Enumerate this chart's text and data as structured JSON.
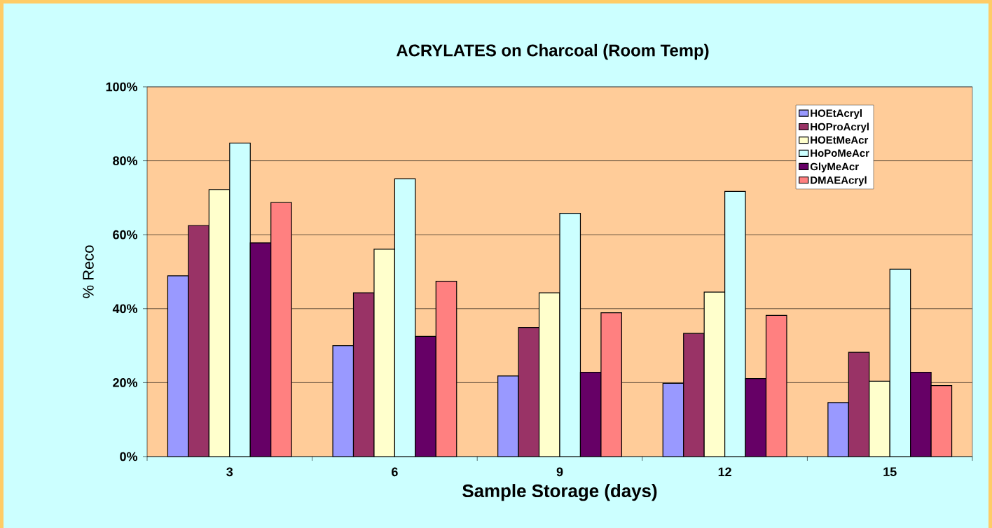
{
  "chart_data": {
    "type": "bar",
    "title": "ACRYLATES on Charcoal (Room Temp)",
    "xlabel": "Sample Storage (days)",
    "ylabel": "% Reco",
    "categories": [
      "3",
      "6",
      "9",
      "12",
      "15"
    ],
    "series": [
      {
        "name": "HOEtAcryl",
        "color": "#9999ff",
        "values": [
          48.9,
          30.0,
          21.8,
          19.8,
          14.6
        ]
      },
      {
        "name": "HOProAcryl",
        "color": "#993366",
        "values": [
          62.5,
          44.3,
          34.9,
          33.3,
          28.2
        ]
      },
      {
        "name": "HOEtMeAcr",
        "color": "#ffffcc",
        "values": [
          72.2,
          56.1,
          44.3,
          44.5,
          20.4
        ]
      },
      {
        "name": "HoPoMeAcr",
        "color": "#ccffff",
        "values": [
          84.8,
          75.1,
          65.8,
          71.7,
          50.7
        ]
      },
      {
        "name": "GlyMeAcr",
        "color": "#660066",
        "values": [
          57.8,
          32.5,
          22.8,
          21.1,
          22.8
        ]
      },
      {
        "name": "DMAEAcryl",
        "color": "#ff8080",
        "values": [
          68.7,
          47.4,
          38.9,
          38.2,
          19.2
        ]
      }
    ],
    "ylim": [
      0,
      100
    ],
    "yticks": [
      {
        "value": 0,
        "label": "0%"
      },
      {
        "value": 20,
        "label": "20%"
      },
      {
        "value": 40,
        "label": "40%"
      },
      {
        "value": 60,
        "label": "60%"
      },
      {
        "value": 80,
        "label": "80%"
      },
      {
        "value": 100,
        "label": "100%"
      }
    ],
    "grid": "y",
    "legend": "top right"
  }
}
